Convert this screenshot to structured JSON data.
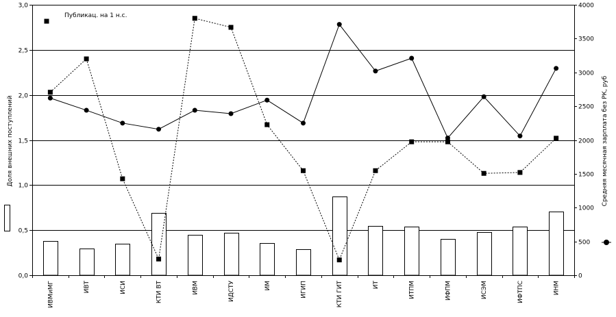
{
  "chart_data": {
    "type": "bar",
    "categories": [
      "ИВМиМГ",
      "ИВТ",
      "ИСИ",
      "КТИ ВТ",
      "ИВМ",
      "ИДСТУ",
      "ИМ",
      "ИГИП",
      "КТИ ГИТ",
      "ИТ",
      "ИТПМ",
      "ИФПМ",
      "ИСЭМ",
      "ИФТПС",
      "ИНМ"
    ],
    "series": [
      {
        "kind": "bar",
        "axis": "left",
        "values": [
          0.38,
          0.3,
          0.35,
          0.69,
          0.45,
          0.47,
          0.36,
          0.29,
          0.87,
          0.55,
          0.54,
          0.4,
          0.48,
          0.54,
          0.71
        ]
      },
      {
        "kind": "line-dotted",
        "name": "Публикац. на 1 н.с.",
        "axis": "left",
        "marker": "square",
        "values": [
          2.03,
          2.4,
          1.07,
          0.18,
          2.85,
          2.75,
          1.67,
          1.16,
          0.17,
          1.16,
          1.48,
          1.48,
          1.13,
          1.14,
          1.52
        ]
      },
      {
        "kind": "line-solid",
        "axis": "right",
        "marker": "circle",
        "values": [
          2620,
          2440,
          2250,
          2160,
          2440,
          2390,
          2590,
          2250,
          3710,
          3020,
          3210,
          2030,
          2640,
          2060,
          3060
        ]
      }
    ],
    "y_left": {
      "min": 0,
      "max": 3,
      "ticks": [
        "0,0",
        "0,5",
        "1,0",
        "1,5",
        "2,0",
        "2,5",
        "3,0"
      ],
      "label": "Доля внешних поступлений"
    },
    "y_right": {
      "min": 0,
      "max": 4000,
      "ticks": [
        "0",
        "500",
        "1000",
        "1500",
        "2000",
        "2500",
        "3000",
        "3500",
        "4000"
      ],
      "label": "Средняя месячная зарплата без РК, руб"
    },
    "grid": true,
    "legend_entry": "Публикац. на 1 н.с."
  }
}
